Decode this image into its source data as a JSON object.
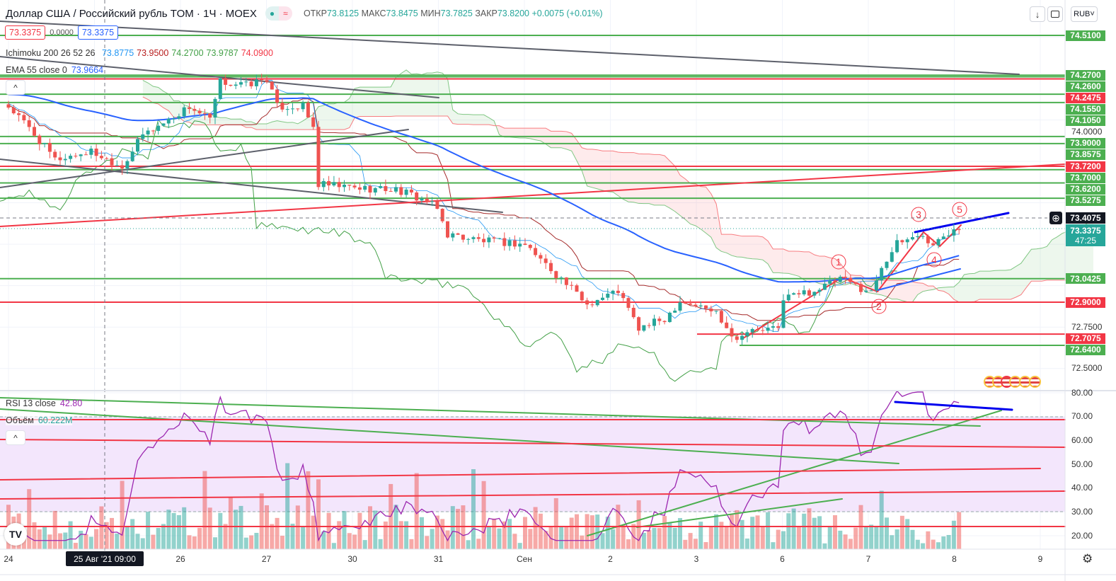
{
  "header": {
    "title": "Доллар США / Российский рубль TOM · 1Ч · MOEX",
    "status_icons": [
      "market-open-dot-icon",
      "approx-icon"
    ],
    "ohlc": {
      "open_label": "ОТКР",
      "open": "73.8125",
      "high_label": "МАКС",
      "high": "73.8475",
      "low_label": "МИН",
      "low": "73.7825",
      "close_label": "ЗАКР",
      "close": "73.8200",
      "change": "+0.0075 (+0.01%)"
    },
    "sell_price": "73.3375",
    "spread": "0.0000",
    "buy_price": "73.3375"
  },
  "toolbar": {
    "download_icon": "↓",
    "fullscreen_icon": "fullscreen-icon",
    "currency": "RUB"
  },
  "legend": {
    "ichimoku_label": "Ichimoku 200 26 52 26",
    "ichimoku_values": [
      "73.8775",
      "73.9500",
      "74.2700",
      "73.9787",
      "74.0900"
    ],
    "ema_label": "EMA 55 close 0",
    "ema_value": "73.9664",
    "rsi_label": "RSI 13 close",
    "rsi_value": "42.80",
    "volume_label": "Объём",
    "volume_value": "60.222M"
  },
  "colors": {
    "up": "#26a69a",
    "down": "#ef5350",
    "level_green": "#4caf50",
    "level_red": "#f23645",
    "ema": "#2962ff",
    "rsi": "#9c27b0"
  },
  "chart_data": {
    "type": "candlestick",
    "symbol": "USDRUB_TOM",
    "price_axis_ticks": [
      "74.0000",
      "72.7500",
      "72.5000"
    ],
    "price_close_anchors": [
      [
        0,
        74.08
      ],
      [
        4,
        73.95
      ],
      [
        9,
        73.76
      ],
      [
        16,
        73.81
      ],
      [
        22,
        73.72
      ],
      [
        26,
        73.91
      ],
      [
        31,
        74.0
      ],
      [
        35,
        74.08
      ],
      [
        39,
        74.0
      ],
      [
        41,
        74.23
      ],
      [
        46,
        74.21
      ],
      [
        50,
        74.25
      ],
      [
        52,
        74.08
      ],
      [
        57,
        74.08
      ],
      [
        59,
        73.95
      ],
      [
        60,
        73.61
      ],
      [
        67,
        73.59
      ],
      [
        75,
        73.58
      ],
      [
        81,
        73.51
      ],
      [
        83,
        73.46
      ],
      [
        85,
        73.31
      ],
      [
        92,
        73.27
      ],
      [
        100,
        73.25
      ],
      [
        105,
        73.1
      ],
      [
        112,
        72.89
      ],
      [
        118,
        72.97
      ],
      [
        122,
        72.74
      ],
      [
        127,
        72.8
      ],
      [
        130,
        72.91
      ],
      [
        137,
        72.84
      ],
      [
        141,
        72.67
      ],
      [
        142,
        72.72
      ],
      [
        149,
        72.74
      ],
      [
        150,
        72.93
      ],
      [
        156,
        72.97
      ],
      [
        161,
        73.04
      ],
      [
        167,
        72.96
      ],
      [
        169,
        73.12
      ],
      [
        172,
        73.25
      ],
      [
        176,
        73.31
      ],
      [
        179,
        73.25
      ],
      [
        182,
        73.31
      ],
      [
        183,
        73.36
      ],
      [
        184,
        73.3375
      ]
    ],
    "levels": [
      {
        "price": "74.5100",
        "color": "green"
      },
      {
        "price": "74.2700",
        "color": "green"
      },
      {
        "price": "74.2600",
        "color": "green"
      },
      {
        "price": "74.2475",
        "color": "red"
      },
      {
        "price": "74.1550",
        "color": "green"
      },
      {
        "price": "74.1050",
        "color": "green"
      },
      {
        "price": "73.9000",
        "color": "green"
      },
      {
        "price": "73.8575",
        "color": "green"
      },
      {
        "price": "73.7200",
        "color": "red"
      },
      {
        "price": "73.7000",
        "color": "green"
      },
      {
        "price": "73.6200",
        "color": "green"
      },
      {
        "price": "73.5275",
        "color": "green"
      },
      {
        "price": "73.0425",
        "color": "green"
      },
      {
        "price": "72.9000",
        "color": "red"
      },
      {
        "price": "72.7075",
        "color": "red"
      },
      {
        "price": "72.6400",
        "color": "green"
      }
    ],
    "crosshair_price": "73.4075",
    "last_price": "73.3375",
    "countdown": "47:25",
    "wave_labels": [
      "1",
      "2",
      "3",
      "4",
      "5"
    ],
    "rsi_axis_ticks": [
      "80.00",
      "70.00",
      "60.00",
      "50.00",
      "40.00",
      "30.00",
      "20.00"
    ],
    "rsi_band": [
      30,
      70
    ],
    "x_ticks": [
      {
        "label": "24",
        "day": 0
      },
      {
        "label": "26",
        "day": 2
      },
      {
        "label": "27",
        "day": 3
      },
      {
        "label": "30",
        "day": 4
      },
      {
        "label": "31",
        "day": 5
      },
      {
        "label": "Сен",
        "day": 6
      },
      {
        "label": "2",
        "day": 7
      },
      {
        "label": "3",
        "day": 8
      },
      {
        "label": "6",
        "day": 9
      },
      {
        "label": "7",
        "day": 10
      },
      {
        "label": "8",
        "day": 11
      },
      {
        "label": "9",
        "day": 12
      }
    ],
    "crosshair_time": "25 Авг '21  09:00"
  }
}
